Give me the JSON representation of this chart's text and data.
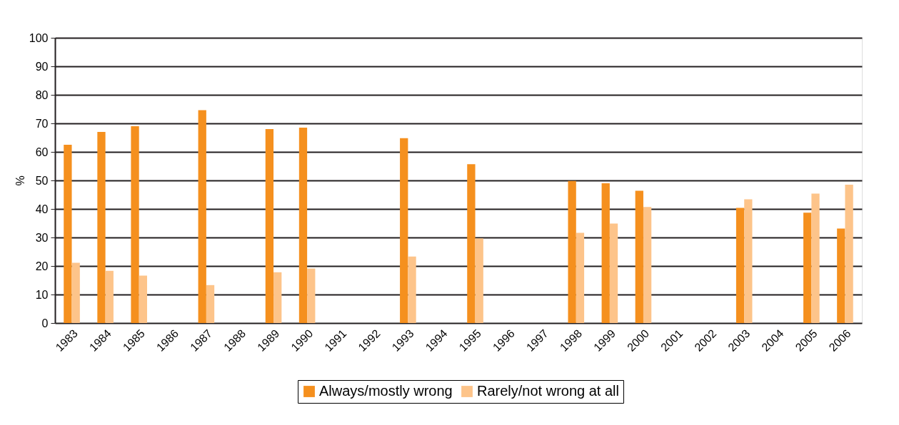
{
  "chart_data": {
    "type": "bar",
    "ylabel": "%",
    "categories": [
      "1983",
      "1984",
      "1985",
      "1986",
      "1987",
      "1988",
      "1989",
      "1990",
      "1991",
      "1992",
      "1993",
      "1994",
      "1995",
      "1996",
      "1997",
      "1998",
      "1999",
      "2000",
      "2001",
      "2002",
      "2003",
      "2004",
      "2005",
      "2006"
    ],
    "series": [
      {
        "name": "Always/mostly wrong",
        "color": "#f5901e",
        "values": [
          62.5,
          67.0,
          69.0,
          null,
          74.6,
          null,
          68.0,
          68.5,
          null,
          null,
          64.8,
          null,
          55.7,
          null,
          null,
          49.8,
          49.0,
          46.4,
          null,
          null,
          40.4,
          null,
          38.7,
          33.1
        ]
      },
      {
        "name": "Rarely/not wrong at all",
        "color": "#fdc48a",
        "values": [
          21.1,
          18.3,
          16.6,
          null,
          13.3,
          null,
          17.8,
          19.1,
          null,
          null,
          23.3,
          null,
          29.7,
          null,
          null,
          31.6,
          34.9,
          40.7,
          null,
          null,
          43.4,
          null,
          45.4,
          48.5
        ]
      }
    ],
    "ylim": [
      0,
      100
    ],
    "yticks": [
      0,
      10,
      20,
      30,
      40,
      50,
      60,
      70,
      80,
      90,
      100
    ],
    "grid": "y",
    "legend": "bottom"
  }
}
